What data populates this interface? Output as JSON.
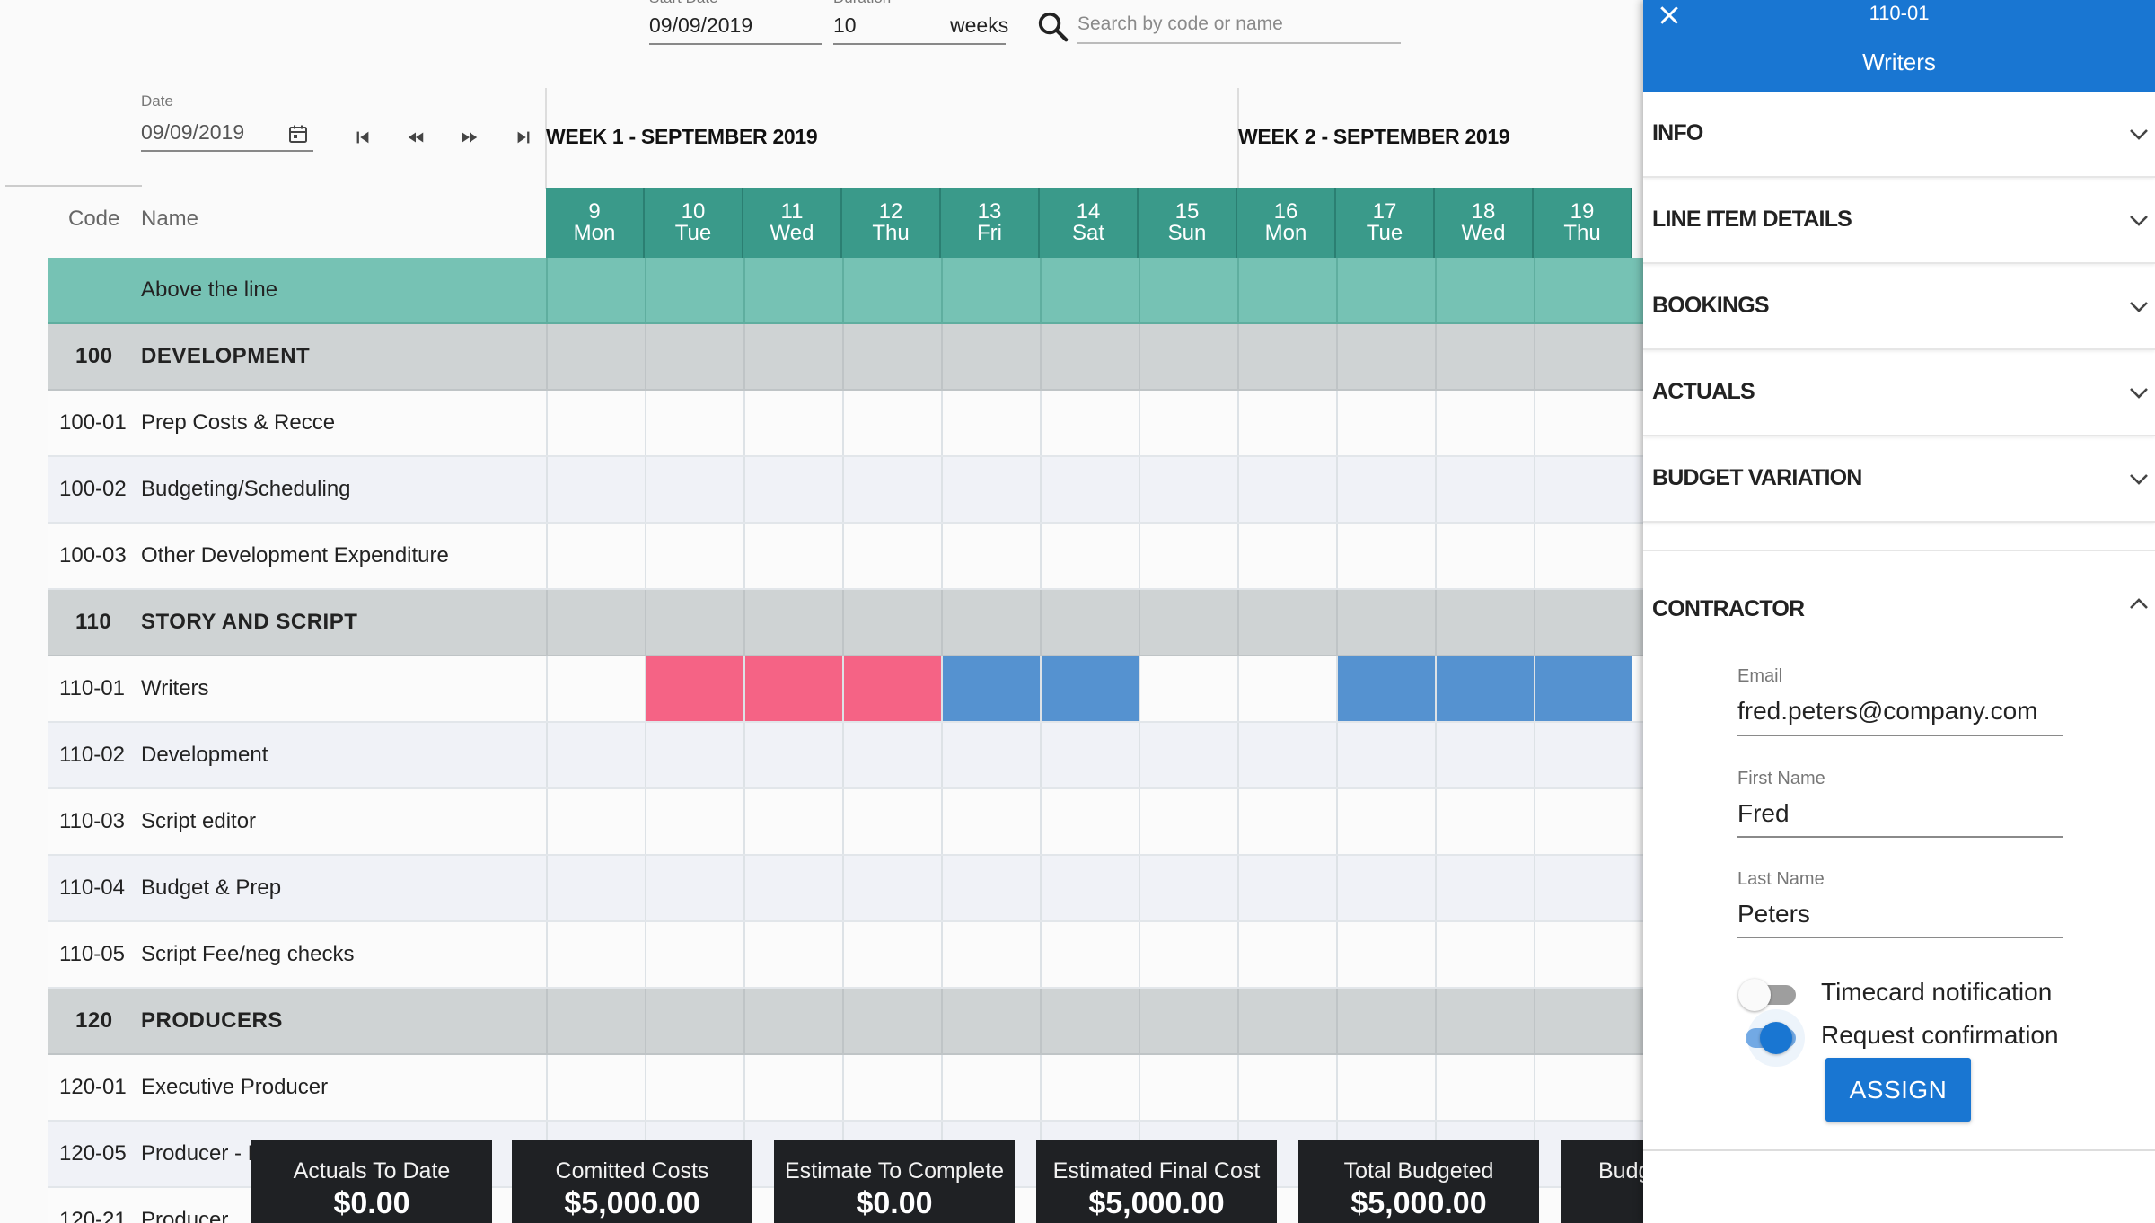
{
  "header": {
    "start_date_label": "Start Date",
    "start_date": "09/09/2019",
    "duration_label": "Duration",
    "duration": "10",
    "duration_unit": "weeks",
    "search_placeholder": "Search by code or name"
  },
  "date_picker": {
    "label": "Date",
    "value": "09/09/2019"
  },
  "columns": {
    "code": "Code",
    "name": "Name"
  },
  "weeks": [
    {
      "label": "WEEK 1 - SEPTEMBER 2019"
    },
    {
      "label": "WEEK 2 - SEPTEMBER 2019"
    }
  ],
  "days": [
    {
      "num": "9",
      "name": "Mon"
    },
    {
      "num": "10",
      "name": "Tue"
    },
    {
      "num": "11",
      "name": "Wed"
    },
    {
      "num": "12",
      "name": "Thu"
    },
    {
      "num": "13",
      "name": "Fri"
    },
    {
      "num": "14",
      "name": "Sat"
    },
    {
      "num": "15",
      "name": "Sun"
    },
    {
      "num": "16",
      "name": "Mon"
    },
    {
      "num": "17",
      "name": "Tue"
    },
    {
      "num": "18",
      "name": "Wed"
    },
    {
      "num": "19",
      "name": "Thu"
    }
  ],
  "rows": [
    {
      "type": "atl",
      "code": "",
      "name": "Above the line"
    },
    {
      "type": "section",
      "code": "100",
      "name": "DEVELOPMENT"
    },
    {
      "type": "plain",
      "code": "100-01",
      "name": "Prep Costs & Recce"
    },
    {
      "type": "alt",
      "code": "100-02",
      "name": "Budgeting/Scheduling"
    },
    {
      "type": "plain",
      "code": "100-03",
      "name": "Other Development Expenditure"
    },
    {
      "type": "section",
      "code": "110",
      "name": "STORY AND SCRIPT"
    },
    {
      "type": "plain",
      "code": "110-01",
      "name": "Writers",
      "bookings": [
        "",
        "pink",
        "pink",
        "pink",
        "blue",
        "blue",
        "",
        "",
        "blue",
        "blue",
        "blue"
      ]
    },
    {
      "type": "alt",
      "code": "110-02",
      "name": "Development"
    },
    {
      "type": "plain",
      "code": "110-03",
      "name": "Script editor"
    },
    {
      "type": "alt",
      "code": "110-04",
      "name": "Budget & Prep"
    },
    {
      "type": "plain",
      "code": "110-05",
      "name": "Script Fee/neg checks"
    },
    {
      "type": "section",
      "code": "120",
      "name": "PRODUCERS"
    },
    {
      "type": "plain",
      "code": "120-01",
      "name": "Executive Producer"
    },
    {
      "type": "alt",
      "code": "120-05",
      "name": "Producer - Expenses"
    },
    {
      "type": "plain",
      "code": "120-21",
      "name": "Producer"
    }
  ],
  "summary": [
    {
      "title": "Actuals To Date",
      "value": "$0.00"
    },
    {
      "title": "Comitted Costs",
      "value": "$5,000.00"
    },
    {
      "title": "Estimate To Complete",
      "value": "$0.00"
    },
    {
      "title": "Estimated Final Cost",
      "value": "$5,000.00"
    },
    {
      "title": "Total Budgeted",
      "value": "$5,000.00"
    },
    {
      "title": "Budg",
      "value": ""
    }
  ],
  "panel": {
    "code": "110-01",
    "title": "Writers",
    "sections": [
      "INFO",
      "LINE ITEM DETAILS",
      "BOOKINGS",
      "ACTUALS",
      "BUDGET VARIATION"
    ],
    "contractor": {
      "title": "CONTRACTOR",
      "email_label": "Email",
      "email": "fred.peters@company.com",
      "first_name_label": "First Name",
      "first_name": "Fred",
      "last_name_label": "Last Name",
      "last_name": "Peters",
      "timecard_label": "Timecard notification",
      "timecard_on": false,
      "confirmation_label": "Request confirmation",
      "confirmation_on": true,
      "assign_label": "ASSIGN"
    }
  },
  "colors": {
    "primary": "#1976d2",
    "day_header": "#3a9a8a",
    "above_line": "#76c2b4",
    "booking_pink": "#f56385",
    "booking_blue": "#5592d0"
  }
}
